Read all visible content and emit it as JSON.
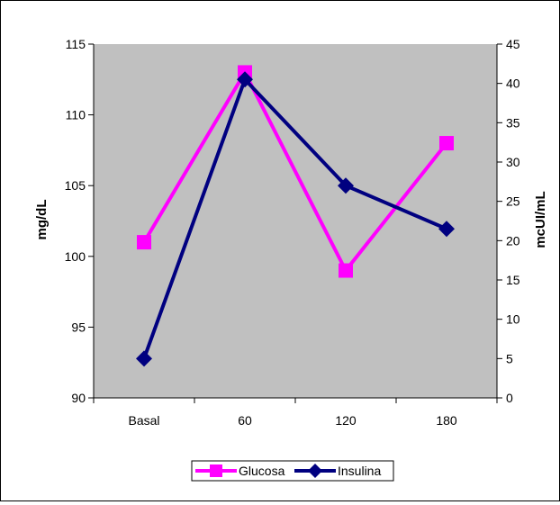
{
  "chart_data": {
    "type": "line",
    "categories": [
      "Basal",
      "60",
      "120",
      "180"
    ],
    "y_left": {
      "label": "mg/dL",
      "range": [
        90,
        115
      ],
      "ticks": [
        "90",
        "95",
        "100",
        "105",
        "110",
        "115"
      ]
    },
    "y_right": {
      "label": "mcUI/mL",
      "range": [
        0,
        45
      ],
      "ticks": [
        "0",
        "5",
        "10",
        "15",
        "20",
        "25",
        "30",
        "35",
        "40",
        "45"
      ]
    },
    "series": [
      {
        "name": "Glucosa",
        "axis": "left",
        "color": "#ff00ff",
        "marker": "square",
        "values": [
          101,
          113,
          99,
          108
        ]
      },
      {
        "name": "Insulina",
        "axis": "right",
        "color": "#000080",
        "marker": "diamond",
        "values": [
          5,
          40.5,
          27,
          21.5
        ]
      }
    ],
    "plot_background": "#c0c0c0",
    "grid": false,
    "legend": "bottom"
  }
}
